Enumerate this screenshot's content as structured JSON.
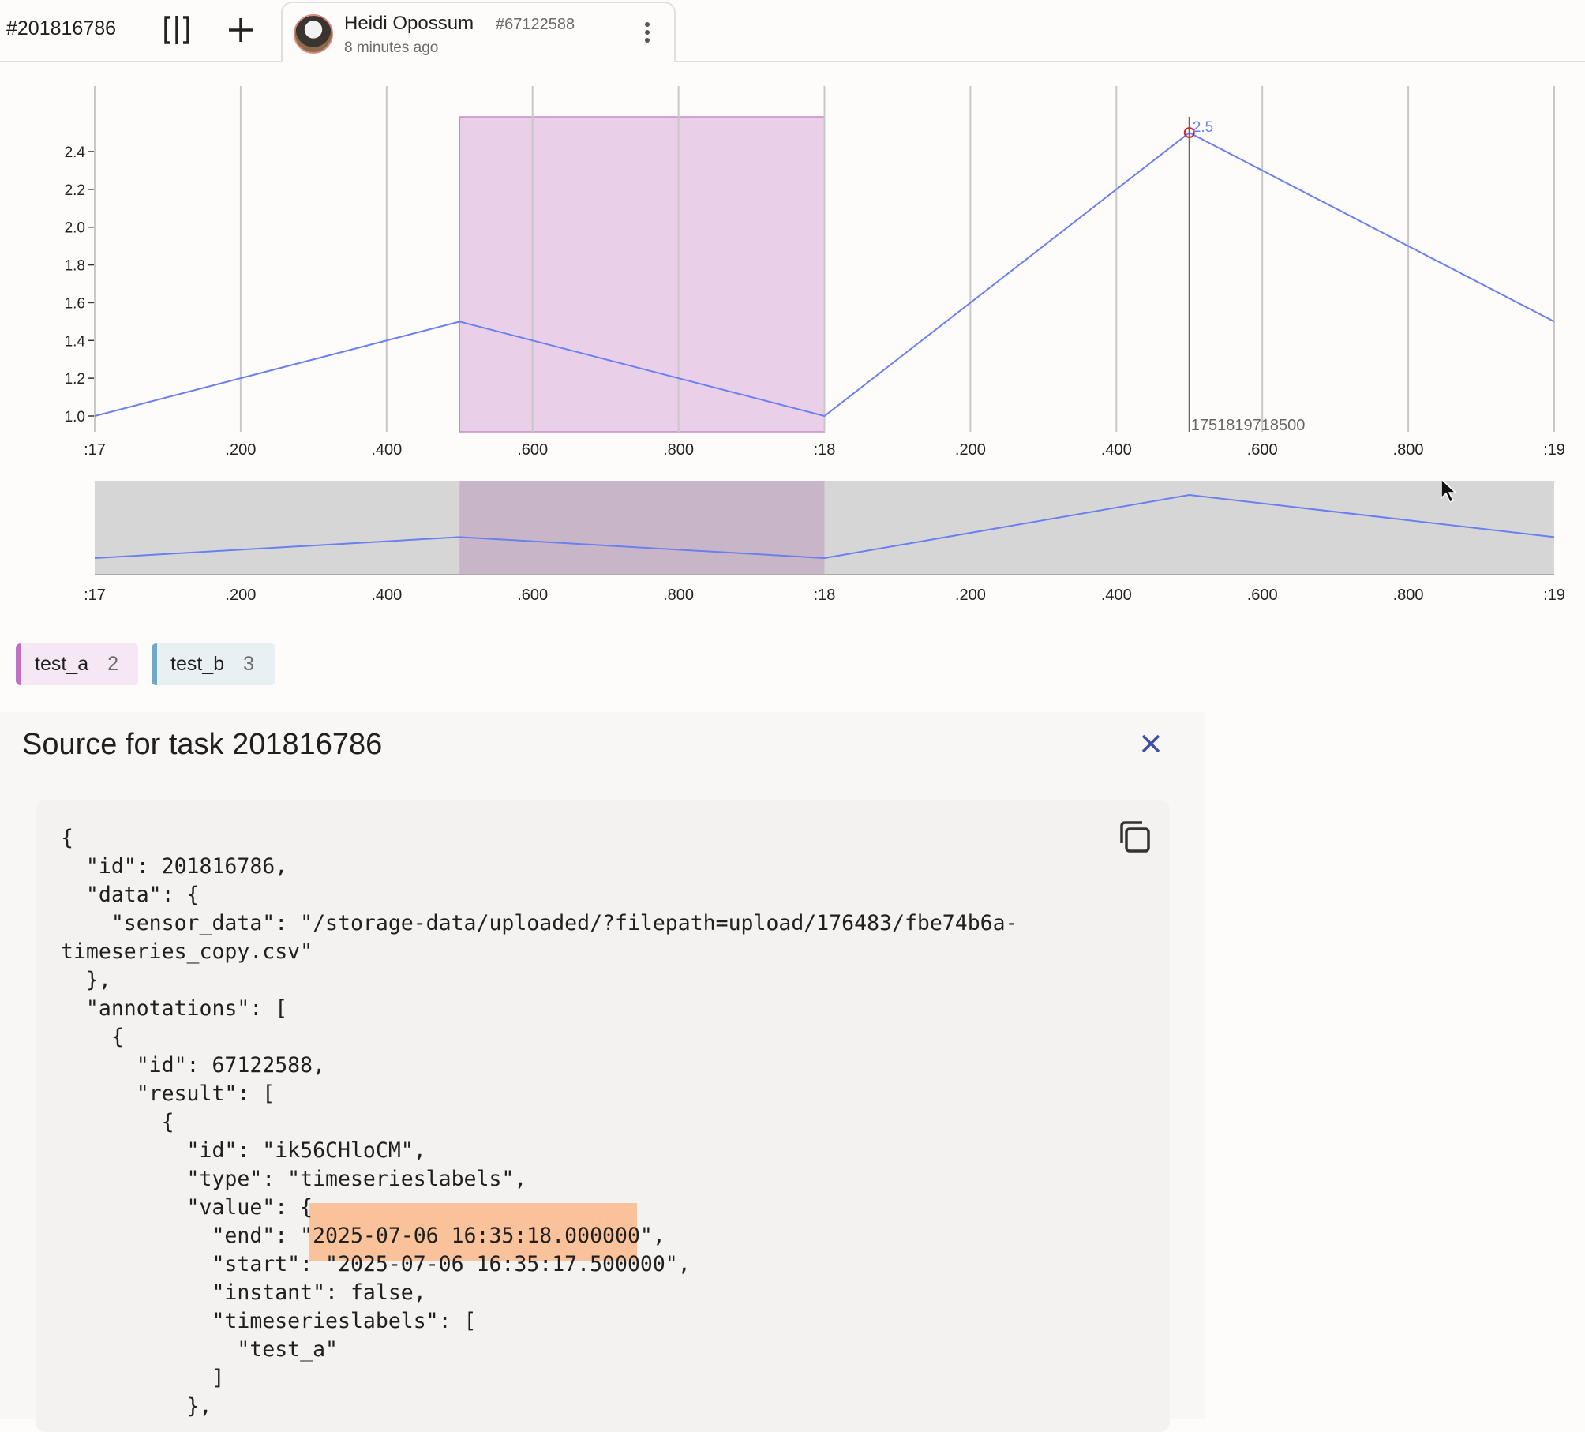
{
  "header": {
    "task_id": "#201816786",
    "tab": {
      "user_name": "Heidi Opossum",
      "annotation_id": "#67122588",
      "time_ago": "8 minutes ago"
    }
  },
  "chart_data": {
    "type": "line",
    "x_unit": "seconds (16:35:xx)",
    "x": [
      17.0,
      17.5,
      18.0,
      18.5,
      19.0
    ],
    "values": [
      1.0,
      1.5,
      1.0,
      2.5,
      1.5
    ],
    "xlim": [
      17.0,
      19.0
    ],
    "ylim": [
      1.0,
      2.4
    ],
    "y_ticks": [
      "1.0",
      "1.2",
      "1.4",
      "1.6",
      "1.8",
      "2.0",
      "2.2",
      "2.4"
    ],
    "x_ticks": [
      ":17",
      ".200",
      ".400",
      ".600",
      ".800",
      ":18",
      ".200",
      ".400",
      ".600",
      ".800",
      ":19"
    ],
    "line_color": "#6a7ff0",
    "grid": true,
    "region": {
      "start": 17.5,
      "end": 18.0,
      "label": "test_a",
      "color": "#c070c0"
    },
    "hover": {
      "x": 18.5,
      "value_label": "2.5",
      "time_label": "1751819718500"
    },
    "overview": true
  },
  "legend": [
    {
      "label": "test_a",
      "count": "2",
      "color": "#c070c0",
      "bg": "#f5e7f3"
    },
    {
      "label": "test_b",
      "count": "3",
      "color": "#6ea8c2",
      "bg": "#e8f0f4"
    }
  ],
  "source_panel": {
    "title": "Source for task 201816786",
    "code_lines": [
      "{",
      "  \"id\": 201816786,",
      "  \"data\": {",
      "    \"sensor_data\": \"/storage-data/uploaded/?filepath=upload/176483/fbe74b6a-",
      "timeseries_copy.csv\"",
      "  },",
      "  \"annotations\": [",
      "    {",
      "      \"id\": 67122588,",
      "      \"result\": [",
      "        {",
      "          \"id\": \"ik56CHloCM\",",
      "          \"type\": \"timeserieslabels\",",
      "          \"value\": {",
      "            \"end\": \"2025-07-06 16:35:18.000000\",",
      "            \"start\": \"2025-07-06 16:35:17.500000\",",
      "            \"instant\": false,",
      "            \"timeserieslabels\": [",
      "              \"test_a\"",
      "            ]",
      "          },"
    ],
    "highlight_color": "#f9c29a"
  }
}
